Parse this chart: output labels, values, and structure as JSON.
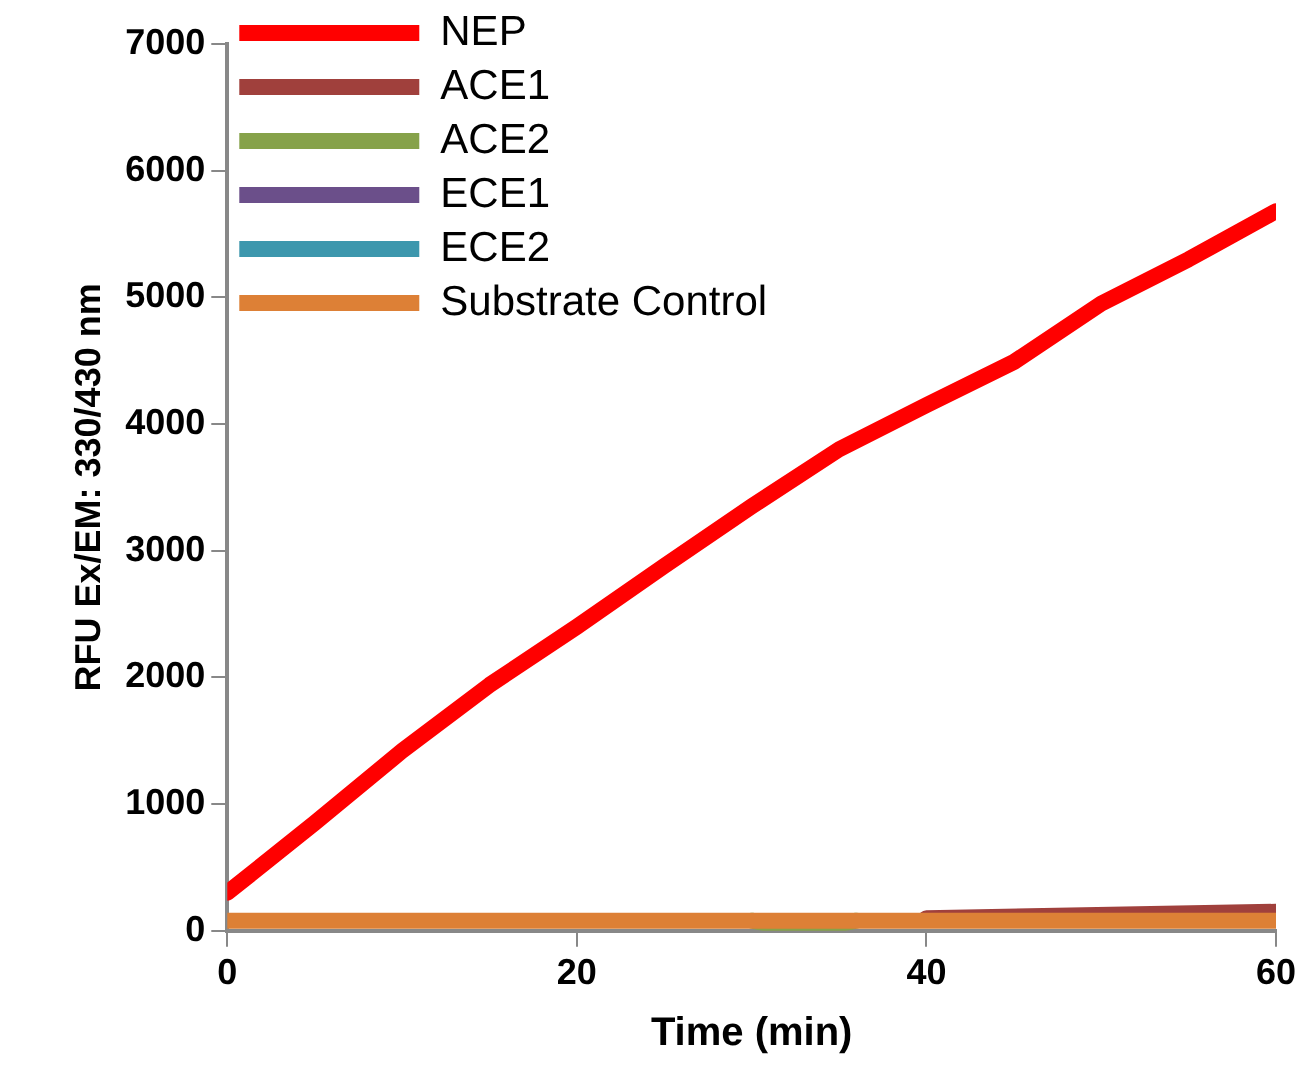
{
  "chart_data": {
    "type": "line",
    "xlabel": "Time (min)",
    "ylabel": "RFU Ex/EM: 330/430 nm",
    "x": [
      0,
      5,
      10,
      15,
      20,
      25,
      30,
      35,
      40,
      45,
      50,
      55,
      60
    ],
    "xlim": [
      0,
      60
    ],
    "xticks": [
      0,
      20,
      40,
      60
    ],
    "ylim": [
      0,
      7000
    ],
    "yticks": [
      0,
      1000,
      2000,
      3000,
      4000,
      5000,
      6000,
      7000
    ],
    "grid": false,
    "legend": "top left",
    "marker": "none",
    "line_style": "solid",
    "series": [
      {
        "name": "NEP",
        "color": "#ff0000",
        "values": [
          300,
          850,
          1420,
          1940,
          2400,
          2880,
          3350,
          3800,
          4150,
          4490,
          4950,
          5300,
          5680
        ]
      },
      {
        "name": "ACE1",
        "color": "#a0403c",
        "x": [
          40,
          60
        ],
        "values": [
          100,
          150
        ]
      },
      {
        "name": "ACE2",
        "color": "#86a24a",
        "x": [
          30,
          33,
          36
        ],
        "values": [
          80,
          0,
          80
        ]
      },
      {
        "name": "ECE1",
        "color": "#6b4f8a",
        "values": [
          null,
          null,
          null,
          null,
          null,
          null,
          null,
          null,
          null,
          null,
          null,
          null,
          null
        ]
      },
      {
        "name": "ECE2",
        "color": "#3d97ad",
        "values": [
          null,
          null,
          null,
          null,
          null,
          null,
          null,
          null,
          null,
          null,
          null,
          null,
          null
        ]
      },
      {
        "name": "Substrate Control",
        "color": "#dd8036",
        "values": [
          80,
          80,
          80,
          80,
          80,
          80,
          80,
          80,
          80,
          80,
          80,
          80,
          80
        ]
      }
    ]
  }
}
